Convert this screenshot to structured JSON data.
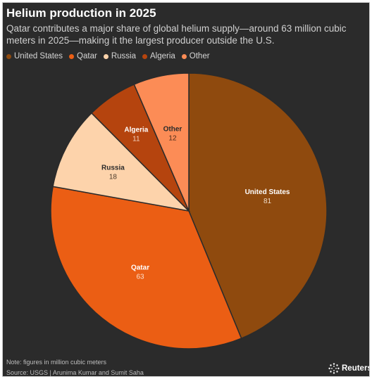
{
  "header": {
    "title": "Helium production in 2025",
    "subtitle": "Qatar contributes a major share of global helium supply—around 63 million cubic meters in 2025—making it the largest producer outside the U.S."
  },
  "footer": {
    "note": "Note: figures in million cubic meters",
    "source": "Source: USGS | Arunima Kumar and Sumit Saha",
    "logo": "Reuters"
  },
  "colors": {
    "background": "#2b2b2b",
    "united_states": "#8f4a0e",
    "qatar": "#eb5e14",
    "russia": "#fdd3ab",
    "algeria": "#b5440e",
    "other": "#fc8c56"
  },
  "chart_data": {
    "type": "pie",
    "title": "Helium production in 2025",
    "categories": [
      "United States",
      "Qatar",
      "Russia",
      "Algeria",
      "Other"
    ],
    "values": [
      81,
      63,
      18,
      11,
      12
    ],
    "unit": "million cubic meters",
    "legend_placement": "top-left",
    "start": "12 o'clock, clockwise"
  }
}
